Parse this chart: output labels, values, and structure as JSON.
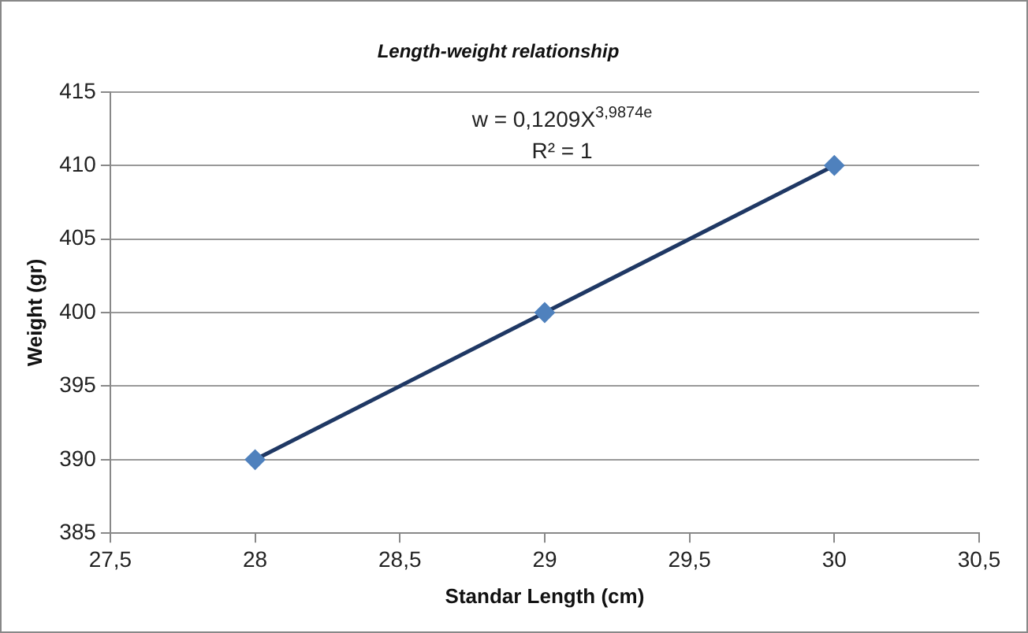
{
  "chart_data": {
    "type": "scatter",
    "title": "Length-weight relationship",
    "xlabel": "Standar Length (cm)",
    "ylabel": "Weight (gr)",
    "x": [
      28,
      29,
      30
    ],
    "series": [
      {
        "type": "line",
        "x": [
          28,
          29,
          30
        ],
        "values": [
          390,
          400,
          410
        ],
        "color": "#1f3864",
        "marker": "none"
      },
      {
        "type": "scatter",
        "values": [
          390,
          400,
          410
        ],
        "color": "#4f81bd",
        "marker": "diamond"
      }
    ],
    "xlim": [
      27.5,
      30.5
    ],
    "xticks": [
      {
        "value": 27.5,
        "label": "27,5"
      },
      28,
      {
        "value": 28.5,
        "label": "28,5"
      },
      29,
      {
        "value": 29.5,
        "label": "29,5"
      },
      30,
      {
        "value": 30.5,
        "label": "30,5"
      }
    ],
    "ylim": [
      385,
      415
    ],
    "yticks": [
      385,
      390,
      395,
      400,
      405,
      410,
      415
    ],
    "grid": "y",
    "legend": false,
    "annotations": [
      "w = 0,1209X$^{3,9874e}$",
      "R² = 1"
    ]
  }
}
